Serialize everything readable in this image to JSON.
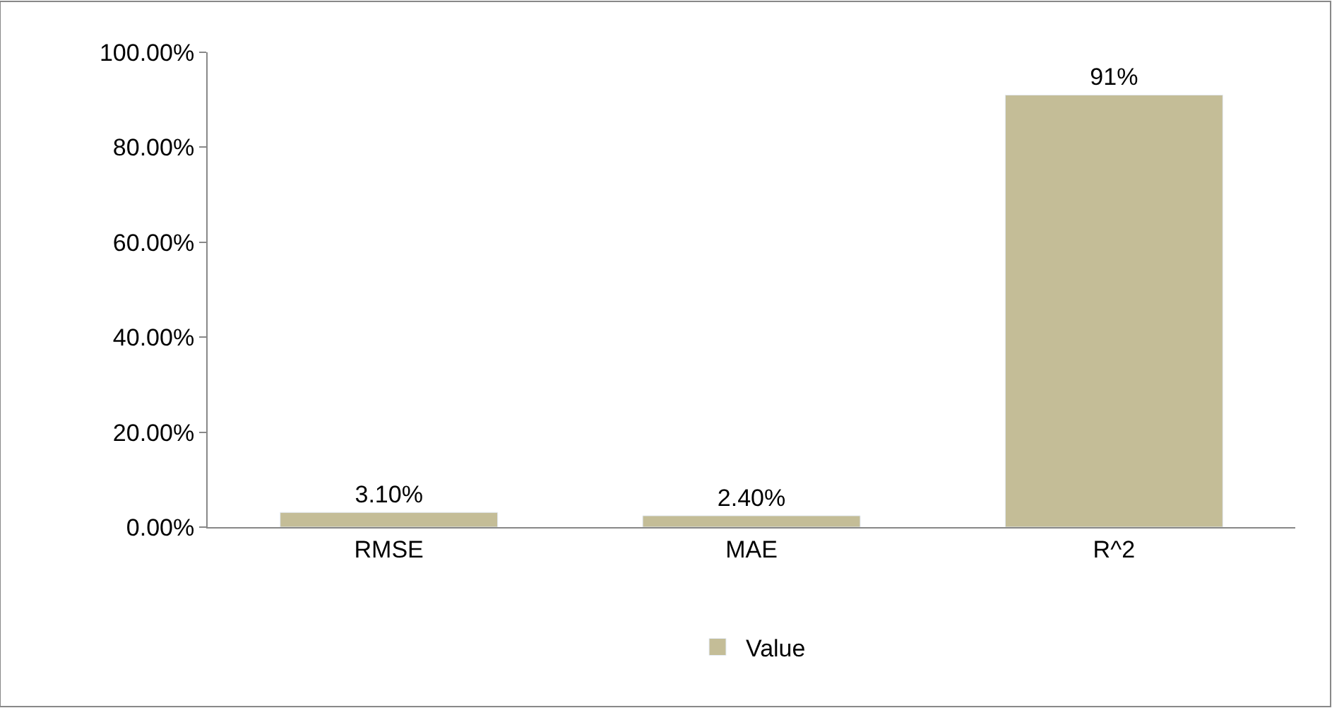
{
  "chart_data": {
    "type": "bar",
    "categories": [
      "RMSE",
      "MAE",
      "R^2"
    ],
    "series": [
      {
        "name": "Value",
        "color": "#c4bd97",
        "values": [
          3.1,
          2.4,
          91
        ],
        "value_labels": [
          "3.10%",
          "2.40%",
          "91%"
        ]
      }
    ],
    "ylim": [
      0,
      100
    ],
    "yticks": [
      {
        "value": 0,
        "label": "0.00%"
      },
      {
        "value": 20,
        "label": "20.00%"
      },
      {
        "value": 40,
        "label": "40.00%"
      },
      {
        "value": 60,
        "label": "60.00%"
      },
      {
        "value": 80,
        "label": "80.00%"
      },
      {
        "value": 100,
        "label": "100.00%"
      }
    ],
    "legend": "bottom"
  }
}
